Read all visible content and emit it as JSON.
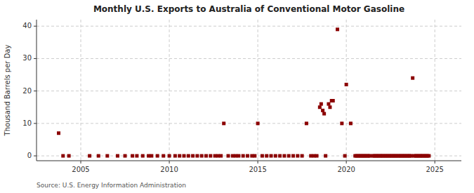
{
  "chart_data": {
    "type": "scatter",
    "title": "Monthly U.S. Exports to Australia of Conventional Motor Gasoline",
    "ylabel": "Thousand Barrels per Day",
    "source": "Source: U.S. Energy Information Administration",
    "color": "#8b0000",
    "marker": "square",
    "grid": true,
    "xlim": [
      2002.5,
      2026.5
    ],
    "ylim": [
      -1.5,
      42
    ],
    "xticks": [
      2005,
      2010,
      2015,
      2020,
      2025
    ],
    "yticks": [
      0,
      10,
      20,
      30,
      40
    ],
    "x": [
      2003.75,
      2004.0,
      2004.33,
      2005.5,
      2006.0,
      2006.5,
      2007.08,
      2007.5,
      2007.92,
      2008.17,
      2008.5,
      2008.83,
      2009.0,
      2009.33,
      2009.67,
      2010.0,
      2010.33,
      2010.58,
      2010.83,
      2011.08,
      2011.33,
      2011.58,
      2011.83,
      2012.08,
      2012.33,
      2012.58,
      2012.75,
      2012.92,
      2013.08,
      2013.33,
      2013.58,
      2013.75,
      2013.92,
      2014.17,
      2014.42,
      2014.67,
      2014.83,
      2015.0,
      2015.25,
      2015.5,
      2015.75,
      2016.0,
      2016.25,
      2016.5,
      2016.75,
      2017.0,
      2017.25,
      2017.5,
      2017.75,
      2018.0,
      2018.17,
      2018.33,
      2018.5,
      2018.58,
      2018.67,
      2018.75,
      2018.83,
      2019.0,
      2019.08,
      2019.17,
      2019.25,
      2019.5,
      2019.75,
      2019.92,
      2020.0,
      2020.25,
      2020.5,
      2020.58,
      2020.67,
      2020.75,
      2020.83,
      2020.92,
      2021.0,
      2021.08,
      2021.17,
      2021.25,
      2021.33,
      2021.5,
      2021.58,
      2021.67,
      2021.75,
      2021.83,
      2021.92,
      2022.0,
      2022.08,
      2022.17,
      2022.25,
      2022.33,
      2022.42,
      2022.5,
      2022.58,
      2022.67,
      2022.75,
      2022.83,
      2022.92,
      2023.0,
      2023.08,
      2023.17,
      2023.25,
      2023.33,
      2023.42,
      2023.5,
      2023.58,
      2023.67,
      2023.75,
      2023.83,
      2023.92,
      2024.0,
      2024.08,
      2024.17,
      2024.25,
      2024.33,
      2024.42,
      2024.5,
      2024.58,
      2024.67
    ],
    "values": [
      7.0,
      0.0,
      0.0,
      0.0,
      0.0,
      0.0,
      0.0,
      0.0,
      0.0,
      0.0,
      0.0,
      0.0,
      0.0,
      0.0,
      0.0,
      0.0,
      0.0,
      0.0,
      0.0,
      0.0,
      0.0,
      0.0,
      0.0,
      0.0,
      0.0,
      0.0,
      0.0,
      0.0,
      10.0,
      0.0,
      0.0,
      0.0,
      0.0,
      0.0,
      0.0,
      0.0,
      0.0,
      10.0,
      0.0,
      0.0,
      0.0,
      0.0,
      0.0,
      0.0,
      0.0,
      0.0,
      0.0,
      0.0,
      10.0,
      0.0,
      0.0,
      0.0,
      15.0,
      16.0,
      14.0,
      13.0,
      0.0,
      16.0,
      15.0,
      17.0,
      17.0,
      39.0,
      10.0,
      0.0,
      22.0,
      10.0,
      0.0,
      0.0,
      0.0,
      0.0,
      0.0,
      0.0,
      0.0,
      0.0,
      0.0,
      0.0,
      0.0,
      0.0,
      0.0,
      0.0,
      0.0,
      0.0,
      0.0,
      0.0,
      0.0,
      0.0,
      0.0,
      0.0,
      0.0,
      0.0,
      0.0,
      0.0,
      0.0,
      0.0,
      0.0,
      0.0,
      0.0,
      0.0,
      0.0,
      0.0,
      0.0,
      0.0,
      0.0,
      0.0,
      24.0,
      0.0,
      0.0,
      0.0,
      0.0,
      0.0,
      0.0,
      0.0,
      0.0,
      0.0,
      0.0,
      0.0
    ]
  }
}
